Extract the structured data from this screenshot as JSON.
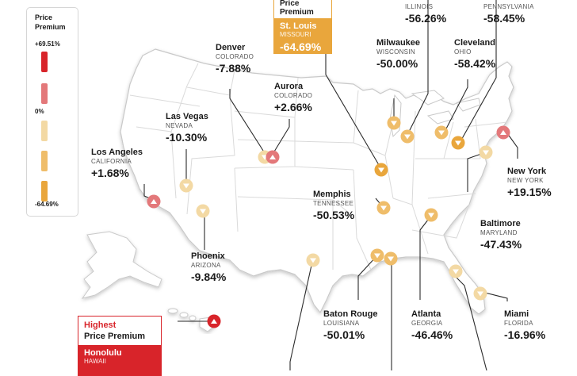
{
  "legend": {
    "title_line1": "Price",
    "title_line2": "Premium",
    "max_label": "+69.51%",
    "mid_label": "0%",
    "min_label": "-64.69%",
    "colors": [
      "#d8242a",
      "#e3787a",
      "#f3d9a4",
      "#efbd6a",
      "#e9a63c"
    ]
  },
  "lowest_box": {
    "header": "Price Premium",
    "city": "St. Louis",
    "state": "MISSOURI",
    "value": "-64.69%",
    "color": "#e9a63c"
  },
  "highest_box": {
    "header_line1": "Highest",
    "header_line2": "Price Premium",
    "city": "Honolulu",
    "state": "HAWAII",
    "color": "#d8242a"
  },
  "cities": {
    "chicago": {
      "state": "ILLINOIS",
      "value": "-56.26%"
    },
    "pittsburgh": {
      "state": "PENNSYLVANIA",
      "value": "-58.45%"
    },
    "denver": {
      "name": "Denver",
      "state": "COLORADO",
      "value": "-7.88%"
    },
    "milwaukee": {
      "name": "Milwaukee",
      "state": "WISCONSIN",
      "value": "-50.00%"
    },
    "cleveland": {
      "name": "Cleveland",
      "state": "OHIO",
      "value": "-58.42%"
    },
    "aurora": {
      "name": "Aurora",
      "state": "COLORADO",
      "value": "+2.66%"
    },
    "las_vegas": {
      "name": "Las Vegas",
      "state": "NEVADA",
      "value": "-10.30%"
    },
    "los_angeles": {
      "name": "Los Angeles",
      "state": "CALIFORNIA",
      "value": "+1.68%"
    },
    "new_york": {
      "name": "New York",
      "state": "NEW YORK",
      "value": "+19.15%"
    },
    "memphis": {
      "name": "Memphis",
      "state": "TENNESSEE",
      "value": "-50.53%"
    },
    "baltimore": {
      "name": "Baltimore",
      "state": "MARYLAND",
      "value": "-47.43%"
    },
    "phoenix": {
      "name": "Phoenix",
      "state": "ARIZONA",
      "value": "-9.84%"
    },
    "baton_rouge": {
      "name": "Baton Rouge",
      "state": "LOUISIANA",
      "value": "-50.01%"
    },
    "atlanta": {
      "name": "Atlanta",
      "state": "GEORGIA",
      "value": "-46.46%"
    },
    "miami": {
      "name": "Miami",
      "state": "FLORIDA",
      "value": "-16.96%"
    }
  },
  "marker_icons": [
    "triangle-down-icon",
    "triangle-up-icon"
  ]
}
